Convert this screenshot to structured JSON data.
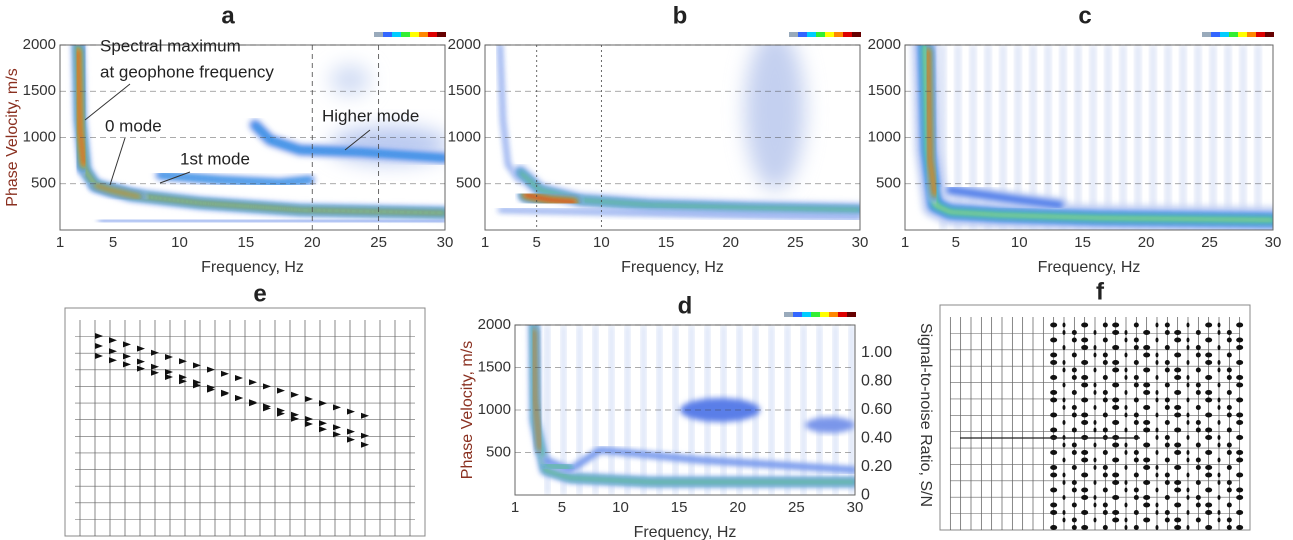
{
  "panels": [
    {
      "label": "a",
      "y_label": "Phase Velocity, m/s",
      "x_label": "Frequency, Hz",
      "yticks": [
        2000,
        1500,
        1000,
        500
      ],
      "xticks": [
        1,
        5,
        10,
        15,
        20,
        25,
        30
      ],
      "annotations": [
        "Spectral maximum",
        "at geophone frequency",
        "0 mode",
        "1st mode",
        "Higher mode"
      ]
    },
    {
      "label": "b",
      "x_label": "Frequency, Hz",
      "yticks": [
        2000,
        1500,
        1000,
        500
      ],
      "xticks": [
        1,
        5,
        10,
        15,
        20,
        25,
        30
      ]
    },
    {
      "label": "c",
      "x_label": "Frequency, Hz",
      "yticks": [
        2000,
        1500,
        1000,
        500
      ],
      "xticks": [
        1,
        5,
        10,
        15,
        20,
        25,
        30
      ]
    },
    {
      "label": "d",
      "y_label": "Phase Velocity, m/s",
      "x_label": "Frequency, Hz",
      "y2_label": "Signal-to-noise Ratio, S/N",
      "yticks": [
        2000,
        1500,
        1000,
        500
      ],
      "xticks": [
        1,
        5,
        10,
        15,
        20,
        25,
        30
      ],
      "y2ticks": [
        "1.00",
        "0.80",
        "0.60",
        "0.40",
        "0.20",
        "0"
      ]
    },
    {
      "label": "e"
    },
    {
      "label": "f"
    }
  ]
}
